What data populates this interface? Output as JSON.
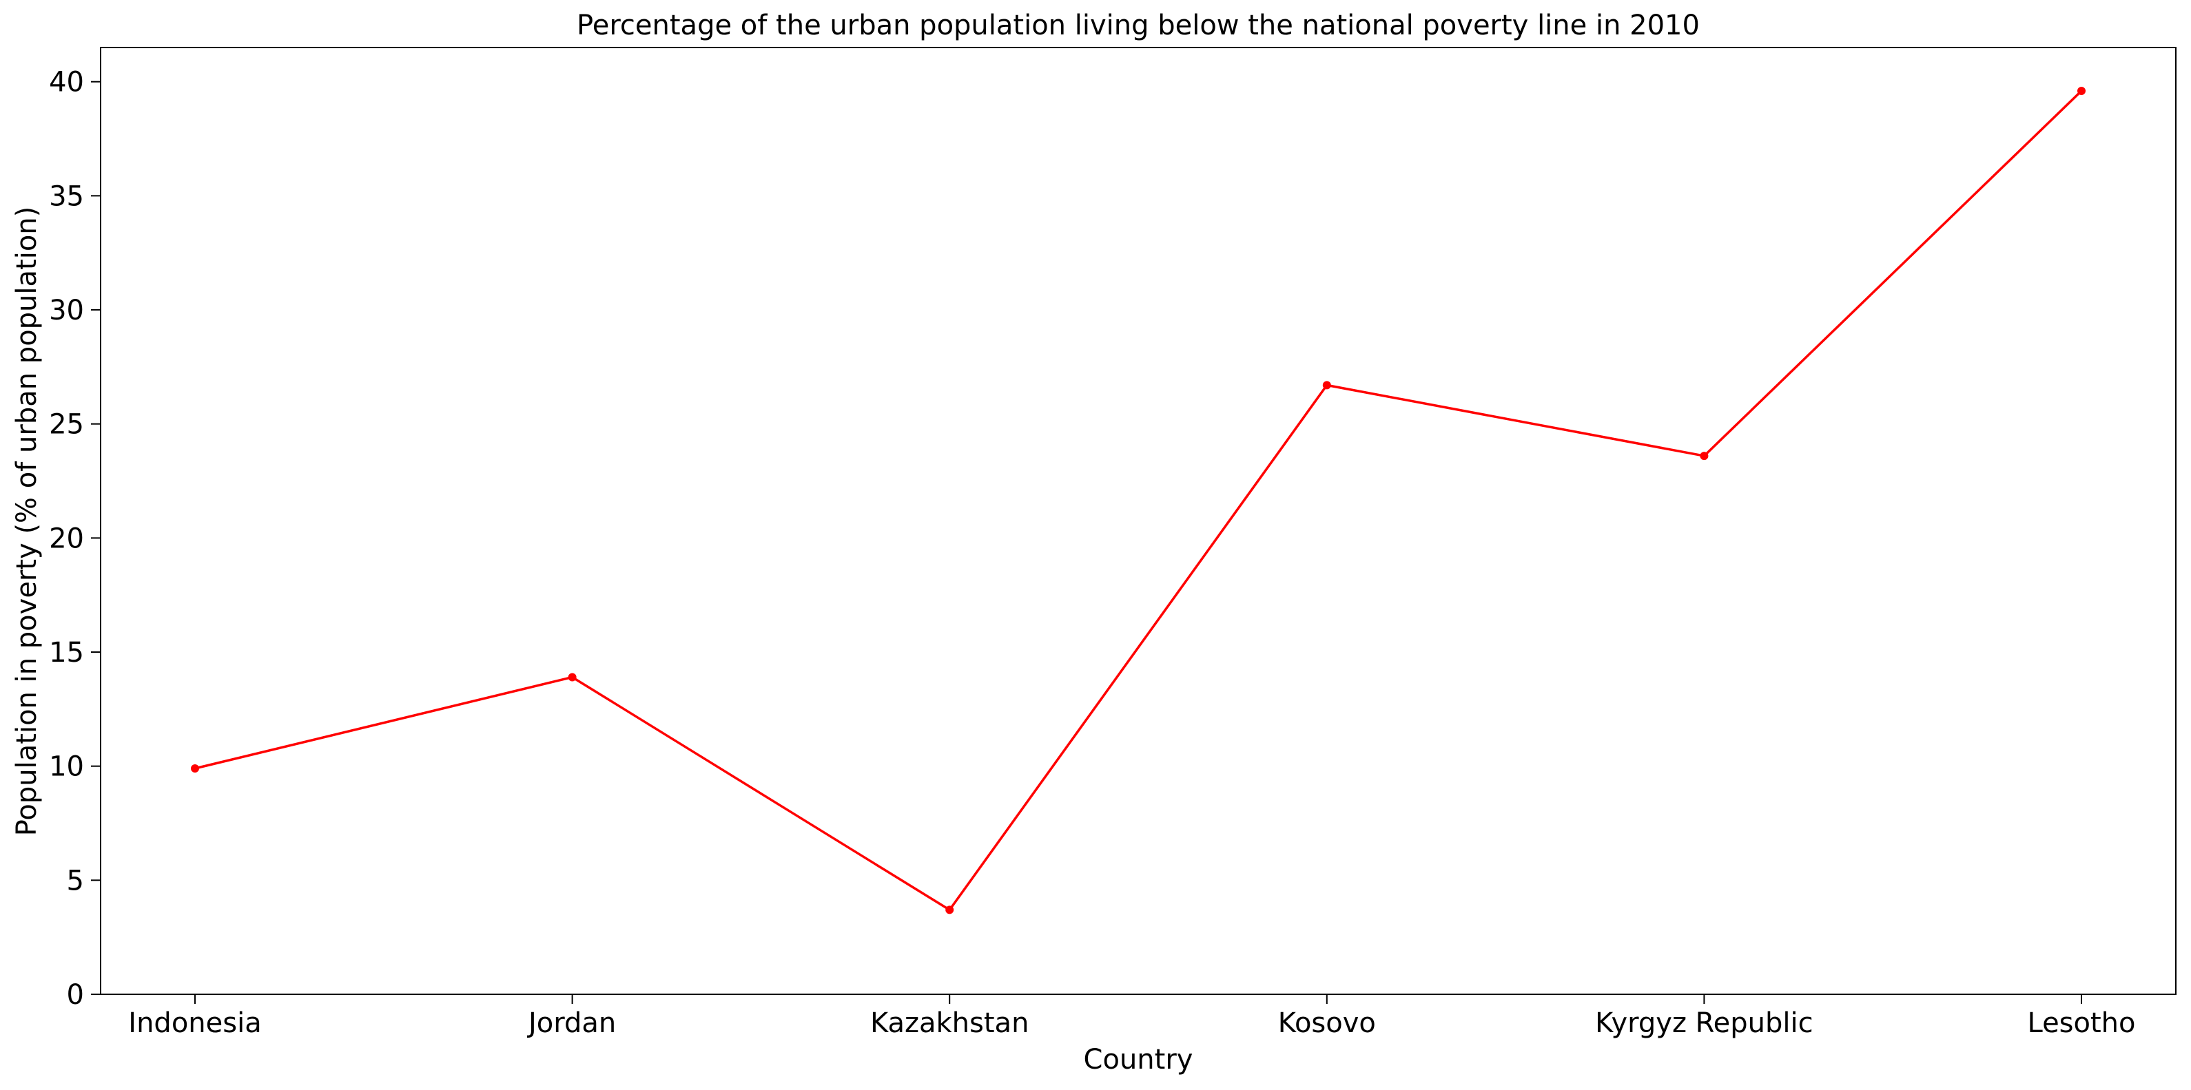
{
  "chart_data": {
    "type": "line",
    "title": "Percentage of the urban population living below the national poverty line in 2010",
    "xlabel": "Country",
    "ylabel": "Population in poverty (% of urban population)",
    "categories": [
      "Indonesia",
      "Jordan",
      "Kazakhstan",
      "Kosovo",
      "Kyrgyz Republic",
      "Lesotho"
    ],
    "series": [
      {
        "values": [
          9.9,
          13.9,
          3.7,
          26.7,
          23.6,
          39.6
        ],
        "color": "#ff0000",
        "marker": "circle"
      }
    ],
    "ylim": [
      0,
      41.5
    ],
    "yticks": [
      0,
      5,
      10,
      15,
      20,
      25,
      30,
      35,
      40
    ],
    "grid": false,
    "legend": "none"
  }
}
